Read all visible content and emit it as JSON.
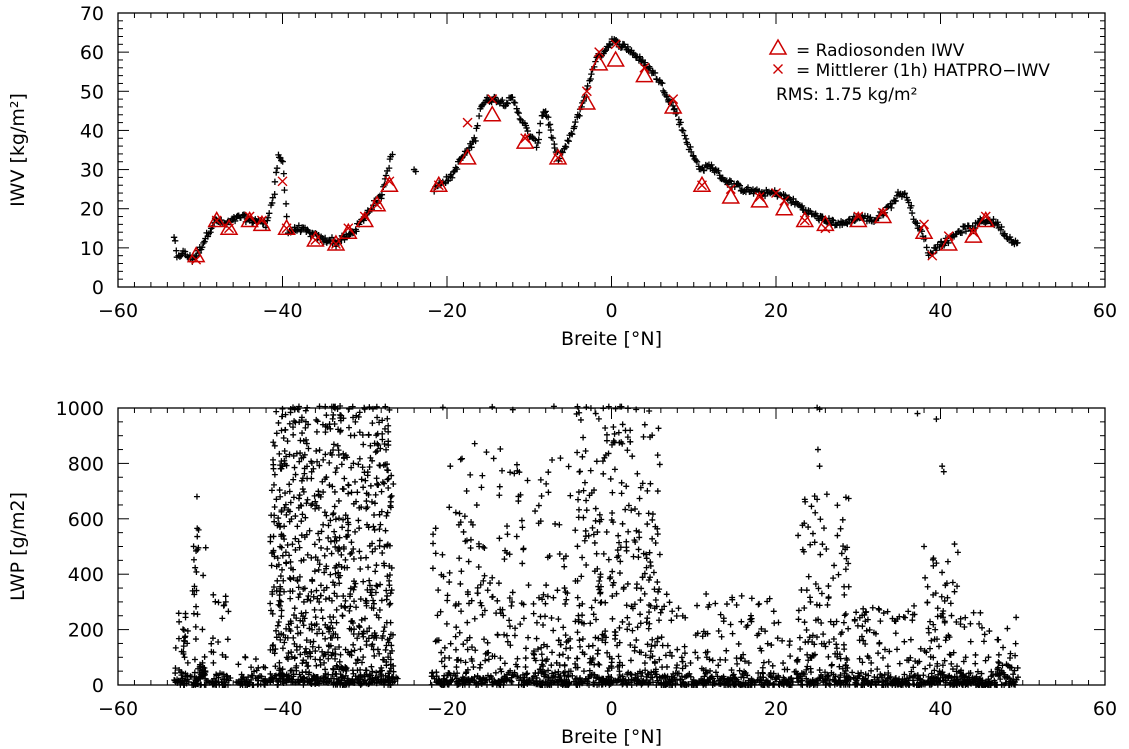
{
  "chart_data": [
    {
      "type": "scatter",
      "xlabel": "Breite [°N]",
      "ylabel": "IWV [kg/m²]",
      "xlim": [
        -60,
        60
      ],
      "ylim": [
        0,
        70
      ],
      "xticks": [
        "−60",
        "−40",
        "−20",
        "0",
        "20",
        "40",
        "60"
      ],
      "yticks": [
        "0",
        "10",
        "20",
        "30",
        "40",
        "50",
        "60",
        "70"
      ],
      "legend": {
        "placement": "top-right",
        "entries": [
          {
            "symbol": "△",
            "label": "= Radiosonden IWV",
            "color": "#cc0000"
          },
          {
            "symbol": "×",
            "label": "= Mittlerer (1h) HATPRO−IWV",
            "color": "#cc0000"
          }
        ],
        "rms_text": "RMS:  1.75 kg/m²"
      },
      "series": [
        {
          "name": "Radiosonden IWV",
          "marker": "triangle",
          "color": "#cc0000",
          "x": [
            -50.5,
            -48,
            -46.5,
            -44,
            -42.5,
            -39.5,
            -36,
            -33.5,
            -32,
            -30,
            -28.5,
            -27,
            -21,
            -17.5,
            -14.5,
            -10.5,
            -6.5,
            -3,
            -1.5,
            0.5,
            4,
            7.5,
            11,
            14.5,
            18,
            21,
            23.5,
            26,
            30,
            33,
            38,
            41,
            44,
            45.5
          ],
          "y": [
            8,
            17,
            15,
            17,
            16,
            15,
            12,
            11,
            14,
            17,
            21,
            26,
            26,
            33,
            44,
            37,
            33,
            47,
            57,
            58,
            54,
            46,
            26,
            23,
            22,
            20,
            17,
            16,
            17,
            18,
            14,
            11,
            13,
            17
          ]
        },
        {
          "name": "Mittlerer (1h) HATPRO-IWV",
          "marker": "x",
          "color": "#cc0000",
          "x": [
            -50.5,
            -48,
            -46.5,
            -44,
            -42.5,
            -40,
            -39.5,
            -36,
            -33.5,
            -32,
            -30,
            -28.5,
            -27,
            -21,
            -17.5,
            -14.5,
            -10.5,
            -6.5,
            -3,
            -1.5,
            0.5,
            4,
            7.5,
            11,
            14.5,
            18,
            20,
            21,
            23.5,
            26,
            30,
            33,
            38,
            39,
            41,
            44,
            45.5
          ],
          "y": [
            7,
            17,
            15,
            18,
            17,
            27,
            15,
            12,
            11,
            15,
            18,
            21,
            27,
            26,
            42,
            48,
            38,
            33,
            50,
            60,
            62,
            56,
            48,
            26,
            25,
            23,
            24,
            22,
            17,
            15,
            18,
            19,
            16,
            8,
            13,
            14,
            18
          ]
        }
      ]
    },
    {
      "type": "scatter",
      "xlabel": "Breite [°N]",
      "ylabel": "LWP [g/m2]",
      "xlim": [
        -60,
        60
      ],
      "ylim": [
        0,
        1000
      ],
      "xticks": [
        "−60",
        "−40",
        "−20",
        "0",
        "20",
        "40",
        "60"
      ],
      "yticks": [
        "0",
        "200",
        "400",
        "600",
        "800",
        "1000"
      ]
    }
  ]
}
